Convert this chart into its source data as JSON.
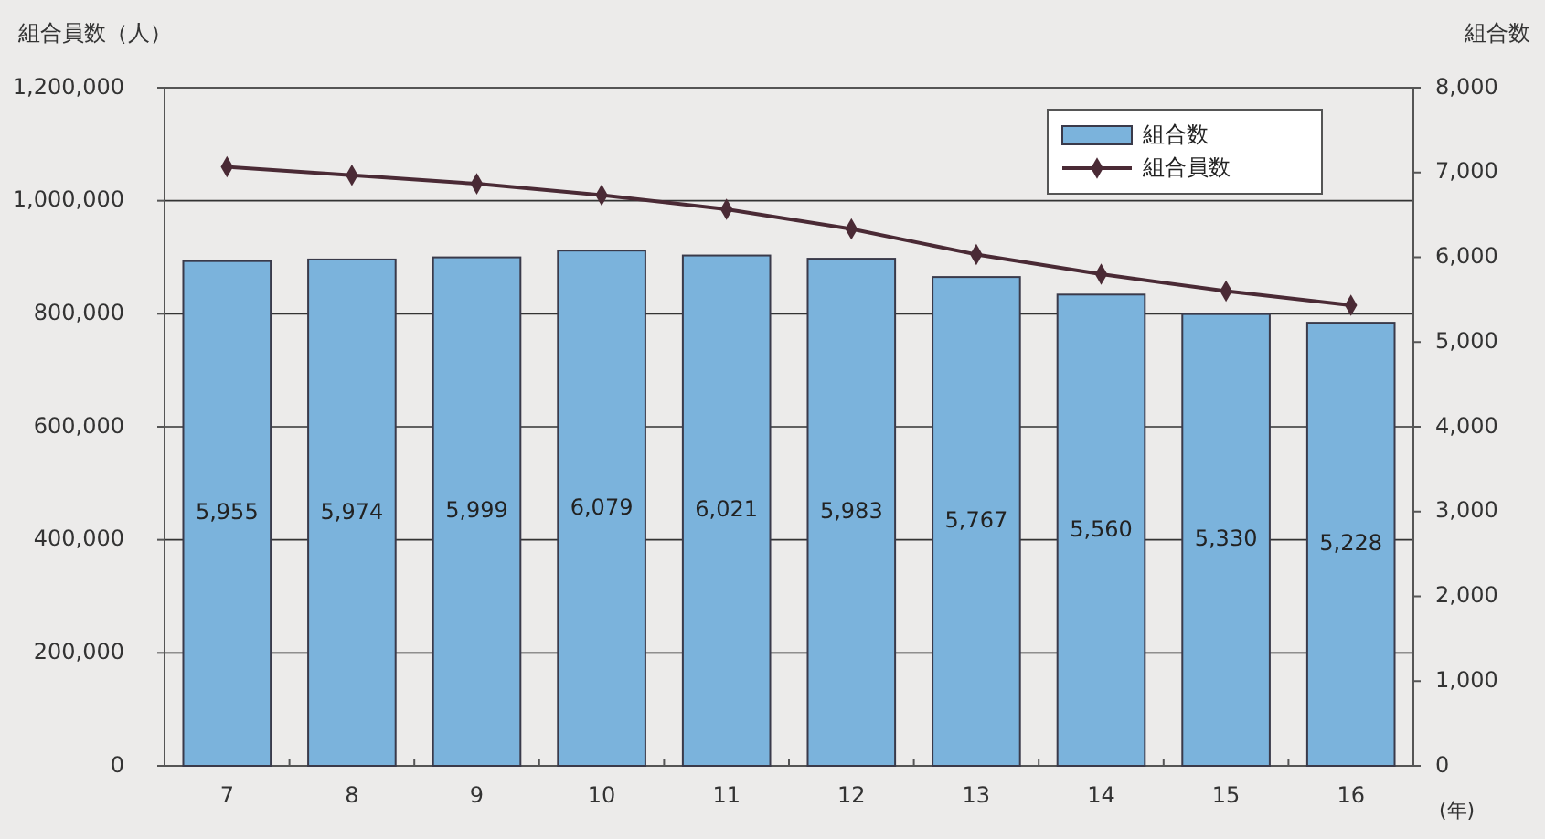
{
  "chart_data": {
    "type": "bar",
    "categories": [
      "7",
      "8",
      "9",
      "10",
      "11",
      "12",
      "13",
      "14",
      "15",
      "16"
    ],
    "series": [
      {
        "name": "組合数",
        "axis": "y2",
        "color": "#7bb3dc",
        "values": [
          5955,
          5974,
          5999,
          6079,
          6021,
          5983,
          5767,
          5560,
          5330,
          5228
        ],
        "value_labels": [
          "5,955",
          "5,974",
          "5,999",
          "6,079",
          "6,021",
          "5,983",
          "5,767",
          "5,560",
          "5,330",
          "5,228"
        ]
      },
      {
        "name": "組合員数",
        "type": "line",
        "axis": "y",
        "color": "#4a2a35",
        "marker": "diamond",
        "values": [
          1060000,
          1045000,
          1030000,
          1010000,
          985000,
          950000,
          905000,
          870000,
          840000,
          815000
        ]
      }
    ],
    "ylabel": "組合員数（人）",
    "y2label": "組合数",
    "xlabel": "(年)",
    "ylim": [
      0,
      1200000
    ],
    "yticks": [
      {
        "value": 0,
        "label": "0"
      },
      {
        "value": 200000,
        "label": "200,000"
      },
      {
        "value": 400000,
        "label": "400,000"
      },
      {
        "value": 600000,
        "label": "600,000"
      },
      {
        "value": 800000,
        "label": "800,000"
      },
      {
        "value": 1000000,
        "label": "1,000,000"
      },
      {
        "value": 1200000,
        "label": "1,200,000"
      }
    ],
    "y2lim": [
      0,
      8000
    ],
    "y2ticks": [
      {
        "value": 0,
        "label": "0"
      },
      {
        "value": 1000,
        "label": "1,000"
      },
      {
        "value": 2000,
        "label": "2,000"
      },
      {
        "value": 3000,
        "label": "3,000"
      },
      {
        "value": 4000,
        "label": "4,000"
      },
      {
        "value": 5000,
        "label": "5,000"
      },
      {
        "value": 6000,
        "label": "6,000"
      },
      {
        "value": 7000,
        "label": "7,000"
      },
      {
        "value": 8000,
        "label": "8,000"
      }
    ],
    "grid": "y",
    "legend": "top right"
  }
}
